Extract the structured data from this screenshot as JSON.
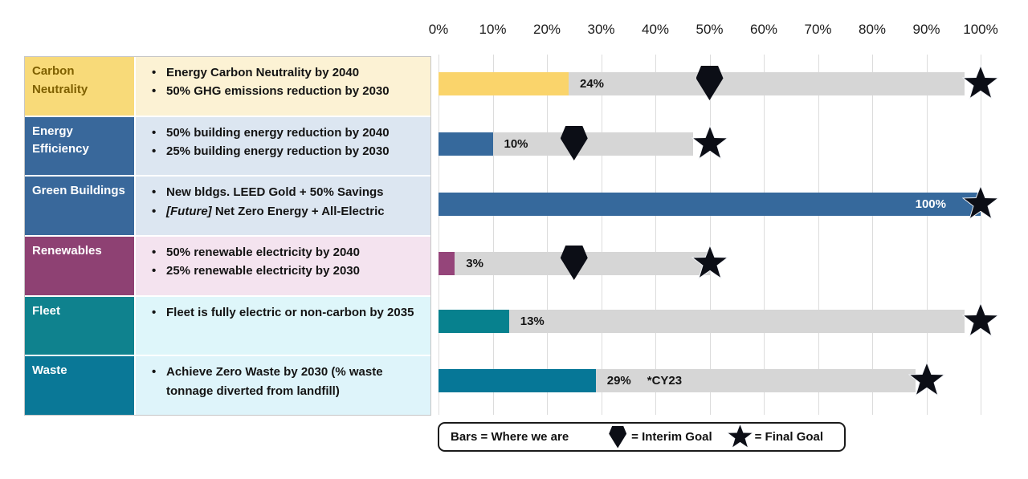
{
  "legend": {
    "bars_label": "Bars = Where we are",
    "interim_label": "= Interim Goal",
    "final_label": "= Final Goal",
    "interim_icon": "pentagon-down-icon",
    "final_icon": "star-icon"
  },
  "chart_data": {
    "type": "bar",
    "orientation": "horizontal",
    "x_axis": {
      "position": "top",
      "min": 0,
      "max": 100,
      "unit": "%",
      "ticks": [
        "0%",
        "10%",
        "20%",
        "30%",
        "40%",
        "50%",
        "60%",
        "70%",
        "80%",
        "90%",
        "100%"
      ],
      "grid": true
    },
    "marker_meanings": {
      "bar": "Where we are",
      "pentagon": "Interim Goal",
      "star": "Final Goal"
    },
    "rows": [
      {
        "category": "Carbon Neutrality",
        "goals": [
          {
            "segments": [
              {
                "t": "Energy Carbon Neutrality by 2040"
              }
            ]
          },
          {
            "segments": [
              {
                "t": "50% GHG emissions reduction by 2030"
              }
            ]
          }
        ],
        "current_pct": 24,
        "value_label": "24%",
        "label_position": "outside",
        "interim_goal_pct": 50,
        "final_goal_pct": 100,
        "track_end_pct": 97,
        "colors": {
          "header_bg": "#F8DA79",
          "header_text": "#7F6000",
          "desc_bg": "#FCF2D4",
          "bar": "#FAD46B"
        }
      },
      {
        "category": "Energy Efficiency",
        "goals": [
          {
            "segments": [
              {
                "t": "50% building energy reduction by 2040"
              }
            ]
          },
          {
            "segments": [
              {
                "t": "25% building energy reduction by 2030"
              }
            ]
          }
        ],
        "current_pct": 10,
        "value_label": "10%",
        "label_position": "outside",
        "interim_goal_pct": 25,
        "final_goal_pct": 50,
        "track_end_pct": 47,
        "colors": {
          "header_bg": "#39689B",
          "header_text": "#FFFFFF",
          "desc_bg": "#DCE6F1",
          "bar": "#36699C"
        }
      },
      {
        "category": "Green Buildings",
        "goals": [
          {
            "segments": [
              {
                "t": "New bldgs. LEED Gold + 50% Savings"
              }
            ]
          },
          {
            "segments": [
              {
                "t": "[Future]",
                "style": "italic"
              },
              {
                "t": " Net Zero Energy + All-Electric"
              }
            ]
          }
        ],
        "current_pct": 100,
        "value_label": "100%",
        "label_position": "inside",
        "interim_goal_pct": null,
        "final_goal_pct": 100,
        "track_end_pct": 100,
        "colors": {
          "header_bg": "#39689B",
          "header_text": "#FFFFFF",
          "desc_bg": "#DCE6F1",
          "bar": "#36699C"
        }
      },
      {
        "category": "Renewables",
        "goals": [
          {
            "segments": [
              {
                "t": "50% renewable electricity by 2040"
              }
            ]
          },
          {
            "segments": [
              {
                "t": "25% renewable electricity by 2030"
              }
            ]
          }
        ],
        "current_pct": 3,
        "value_label": "3%",
        "label_position": "outside",
        "interim_goal_pct": 25,
        "final_goal_pct": 50,
        "track_end_pct": 50,
        "colors": {
          "header_bg": "#8E4173",
          "header_text": "#FFFFFF",
          "desc_bg": "#F4E3EF",
          "bar": "#95457A"
        }
      },
      {
        "category": "Fleet",
        "goals": [
          {
            "segments": [
              {
                "t": "Fleet is fully electric or non-carbon by 2035"
              }
            ]
          }
        ],
        "current_pct": 13,
        "value_label": "13%",
        "label_position": "outside",
        "interim_goal_pct": null,
        "final_goal_pct": 100,
        "track_end_pct": 97,
        "colors": {
          "header_bg": "#0F828E",
          "header_text": "#FFFFFF",
          "desc_bg": "#DEF6FA",
          "bar": "#07818E"
        }
      },
      {
        "category": "Waste",
        "goals": [
          {
            "segments": [
              {
                "t": "Achieve Zero Waste by 2030 (% waste tonnage diverted from landfill)"
              }
            ]
          }
        ],
        "current_pct": 29,
        "value_label": "29%",
        "note": "*CY23",
        "label_position": "outside",
        "interim_goal_pct": null,
        "final_goal_pct": 90,
        "track_end_pct": 88,
        "colors": {
          "header_bg": "#0A7897",
          "header_text": "#FFFFFF",
          "desc_bg": "#DEF4FA",
          "bar": "#067797"
        }
      }
    ]
  }
}
